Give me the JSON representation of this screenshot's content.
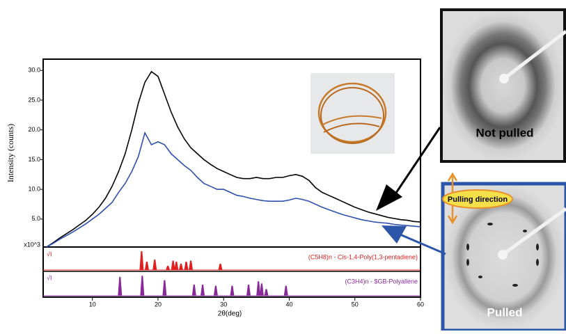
{
  "chart_data": [
    {
      "type": "line",
      "y_label": "Intensity (counts)",
      "y_multiplier": "x10^3",
      "x": [
        3,
        4,
        5,
        6,
        7,
        8,
        9,
        10,
        11,
        12,
        13,
        14,
        15,
        16,
        17,
        18,
        19,
        20,
        21,
        22,
        23,
        24,
        25,
        26,
        27,
        28,
        29,
        30,
        31,
        32,
        33,
        34,
        35,
        36,
        37,
        38,
        39,
        40,
        41,
        42,
        43,
        44,
        45,
        46,
        47,
        48,
        49,
        50,
        51,
        52,
        53,
        54,
        55,
        56,
        57,
        58,
        59,
        60
      ],
      "series": [
        {
          "color": "#000000",
          "values": [
            0.3,
            1.0,
            1.8,
            2.5,
            3.2,
            4.0,
            4.8,
            5.8,
            7.0,
            8.5,
            10.5,
            13,
            16,
            20,
            24.5,
            28,
            29.8,
            29,
            26,
            23,
            20.5,
            18.5,
            17,
            16,
            15,
            14.2,
            13.5,
            13,
            12.5,
            12,
            11.8,
            11.8,
            12,
            11.8,
            11.8,
            12,
            12,
            12.3,
            12.5,
            12.2,
            11.5,
            10.3,
            9.5,
            9,
            8.5,
            8,
            7.5,
            7,
            6.6,
            6.2,
            5.9,
            5.6,
            5.3,
            5.1,
            4.9,
            4.8,
            4.6,
            4.5
          ]
        },
        {
          "color": "#2d4fb0",
          "values": [
            0.3,
            0.9,
            1.6,
            2.2,
            2.8,
            3.5,
            4.2,
            5,
            5.8,
            6.8,
            7.8,
            9.5,
            11,
            13,
            15.5,
            19.5,
            17.5,
            18,
            17.5,
            16,
            15,
            14,
            13.2,
            12,
            11,
            10.5,
            10,
            10,
            9.5,
            9,
            8.8,
            8.5,
            8.3,
            8.1,
            8,
            8,
            8,
            8.2,
            8.5,
            8.3,
            8,
            7.5,
            7,
            6.6,
            6.2,
            5.8,
            5.5,
            5.2,
            4.9,
            4.7,
            4.5,
            4.4,
            4.3,
            4.1,
            4,
            3.9,
            3.8,
            3.7
          ]
        }
      ],
      "xlim": [
        2.5,
        60
      ],
      "ylim": [
        0.3,
        31.9
      ],
      "yticks": [
        {
          "value": 5,
          "label": "5.0"
        },
        {
          "value": 10,
          "label": "10.0"
        },
        {
          "value": 15,
          "label": "15.0"
        },
        {
          "value": 20,
          "label": "20.0"
        },
        {
          "value": 25,
          "label": "25.0"
        },
        {
          "value": 30,
          "label": "30.0"
        }
      ]
    },
    {
      "type": "stick",
      "y_label": "√I",
      "title": "(C5H8)n - Cis-1,4-Poly(1,3-pentadiene)",
      "color": "#e02020",
      "x": [
        17.5,
        18.3,
        19.5,
        21.5,
        22.3,
        22.8,
        23.5,
        24.3,
        25,
        29.5
      ],
      "values": [
        90,
        40,
        50,
        20,
        45,
        40,
        30,
        40,
        45,
        30
      ],
      "xlim": [
        2.5,
        60
      ]
    },
    {
      "type": "stick",
      "y_label": "√I",
      "title": "(C3H4)n - $GB-Polyallene",
      "color": "#8a2a9a",
      "x": [
        14.2,
        17.6,
        21,
        25.5,
        26.8,
        28.8,
        31.3,
        33.8,
        35.3,
        35.8,
        36.5,
        39.5
      ],
      "values": [
        85,
        90,
        70,
        50,
        50,
        45,
        45,
        50,
        65,
        55,
        30,
        45
      ],
      "xlim": [
        2.5,
        60
      ],
      "x_label": "2θ(deg)",
      "xticks": [
        10,
        20,
        30,
        40,
        50,
        60
      ]
    }
  ],
  "images": {
    "top_label": "Not pulled",
    "bottom_label": "Pulled",
    "direction_label": "Pulling direction"
  }
}
